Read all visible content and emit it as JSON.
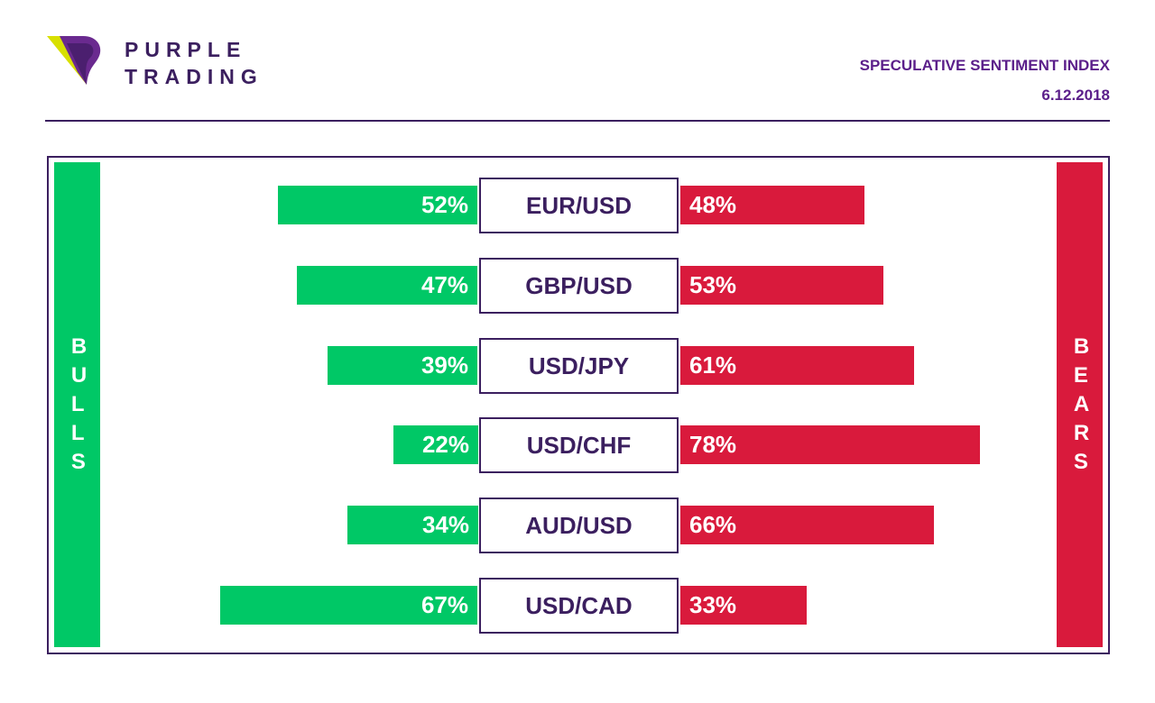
{
  "brand": {
    "line1": "PURPLE",
    "line2": "TRADING",
    "logo_icon": "purple-trading-logo-icon"
  },
  "header": {
    "title": "SPECULATIVE SENTIMENT INDEX",
    "date": "6.12.2018"
  },
  "colors": {
    "bull": "#00c866",
    "bear": "#d91a3c",
    "purple": "#3b1f5f",
    "accent": "#5b1f8a",
    "logo_yellow": "#d8e000"
  },
  "chart_data": {
    "type": "bar",
    "orientation": "diverging-horizontal",
    "side_labels": {
      "left": "BULLS",
      "right": "BEARS"
    },
    "categories": [
      "EUR/USD",
      "GBP/USD",
      "USD/JPY",
      "USD/CHF",
      "AUD/USD",
      "USD/CAD"
    ],
    "series": [
      {
        "name": "BULLS",
        "values": [
          52,
          47,
          39,
          22,
          34,
          67
        ],
        "labels": [
          "52%",
          "47%",
          "39%",
          "22%",
          "34%",
          "67%"
        ]
      },
      {
        "name": "BEARS",
        "values": [
          48,
          53,
          61,
          78,
          66,
          33
        ],
        "labels": [
          "48%",
          "53%",
          "61%",
          "78%",
          "66%",
          "33%"
        ]
      }
    ]
  }
}
